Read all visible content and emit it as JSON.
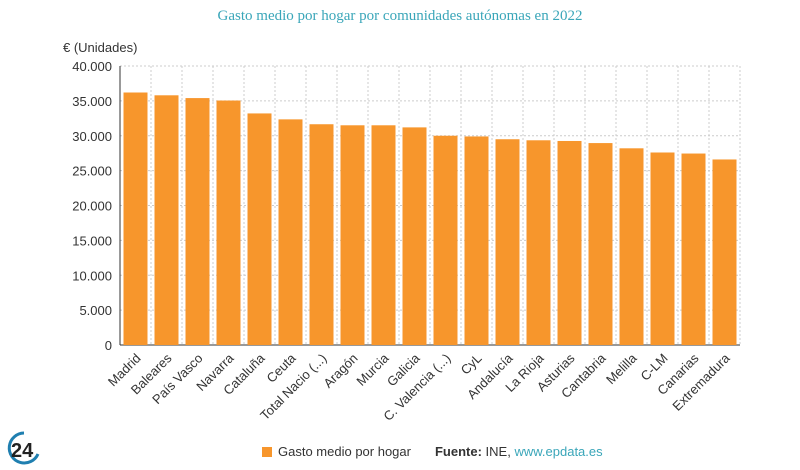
{
  "chart_data": {
    "type": "bar",
    "title": "Gasto medio por hogar por comunidades autónomas en 2022",
    "ylabel": "€ (Unidades)",
    "xlabel": "",
    "ylim": [
      0,
      40000
    ],
    "yticks": [
      0,
      5000,
      10000,
      15000,
      20000,
      25000,
      30000,
      35000,
      40000
    ],
    "ytick_labels": [
      "0",
      "5.000",
      "10.000",
      "15.000",
      "20.000",
      "25.000",
      "30.000",
      "35.000",
      "40.000"
    ],
    "grid": true,
    "legend_position": "bottom",
    "categories": [
      "Madrid",
      "Baleares",
      "País Vasco",
      "Navarra",
      "Cataluña",
      "Ceuta",
      "Total Nacio (...)",
      "Aragón",
      "Murcia",
      "Galicia",
      "C. Valencia (...)",
      "CyL",
      "Andalucía",
      "La Rioja",
      "Asturias",
      "Cantabria",
      "Melilla",
      "C-LM",
      "Canarias",
      "Extremadura"
    ],
    "series": [
      {
        "name": "Gasto medio por hogar",
        "color": "#f7962c",
        "values": [
          36200,
          35800,
          35400,
          35050,
          33200,
          32350,
          31650,
          31500,
          31500,
          31200,
          30000,
          29900,
          29500,
          29350,
          29250,
          28950,
          28200,
          27600,
          27450,
          26600
        ]
      }
    ]
  },
  "source": {
    "label": "Fuente:",
    "text": "INE,",
    "link": "www.epdata.es"
  },
  "logo": "24"
}
